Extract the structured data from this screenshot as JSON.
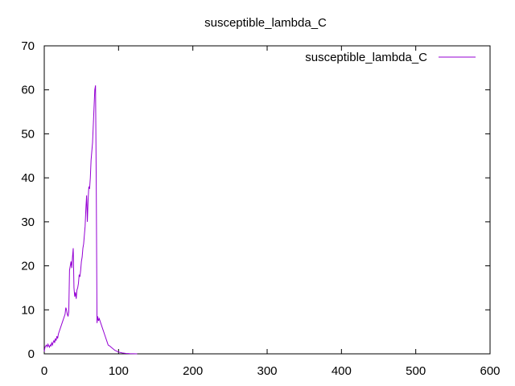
{
  "chart_data": {
    "type": "line",
    "title": "susceptible_lambda_C",
    "xlabel": "",
    "ylabel": "",
    "xlim": [
      0,
      600
    ],
    "ylim": [
      0,
      70
    ],
    "xticks": [
      0,
      100,
      200,
      300,
      400,
      500,
      600
    ],
    "yticks": [
      0,
      10,
      20,
      30,
      40,
      50,
      60,
      70
    ],
    "grid": false,
    "legend_position": "top-right",
    "series": [
      {
        "name": "susceptible_lambda_C",
        "color": "#9400d3",
        "x": [
          0,
          1,
          2,
          3,
          4,
          5,
          6,
          7,
          8,
          9,
          10,
          11,
          12,
          13,
          14,
          15,
          16,
          17,
          18,
          19,
          20,
          21,
          22,
          23,
          24,
          25,
          26,
          27,
          28,
          29,
          30,
          31,
          32,
          33,
          34,
          35,
          36,
          37,
          38,
          39,
          40,
          41,
          42,
          43,
          44,
          45,
          46,
          47,
          48,
          49,
          50,
          51,
          52,
          53,
          54,
          55,
          56,
          57,
          58,
          59,
          60,
          61,
          62,
          63,
          64,
          65,
          66,
          67,
          68,
          69,
          70,
          71,
          72,
          73,
          74,
          75,
          76,
          77,
          78,
          79,
          80,
          82,
          84,
          86,
          88,
          90,
          95,
          100,
          105,
          110,
          115,
          120,
          125
        ],
        "y": [
          0.5,
          1.5,
          1.8,
          2.0,
          1.6,
          2.2,
          1.8,
          1.5,
          2.0,
          1.8,
          2.5,
          2.0,
          2.6,
          3.0,
          2.5,
          3.5,
          3.0,
          4.0,
          3.5,
          4.5,
          5.0,
          5.5,
          6.0,
          6.5,
          7.0,
          7.5,
          8.0,
          8.5,
          9.0,
          10.5,
          10.0,
          9.0,
          8.5,
          9.5,
          19.0,
          20.0,
          21.0,
          19.5,
          22.0,
          24.0,
          15.0,
          13.0,
          14.0,
          12.5,
          14.5,
          15.0,
          16.0,
          18.0,
          17.5,
          19.0,
          21.0,
          22.0,
          24.0,
          25.0,
          27.0,
          29.0,
          33.0,
          36.0,
          30.0,
          35.0,
          38.0,
          37.5,
          40.0,
          44.0,
          46.0,
          48.0,
          52.0,
          56.0,
          60.0,
          61.0,
          38.0,
          7.0,
          8.5,
          7.5,
          8.0,
          7.5,
          7.0,
          6.5,
          6.0,
          5.5,
          5.0,
          4.0,
          3.0,
          2.0,
          1.8,
          1.5,
          0.8,
          0.4,
          0.2,
          0.1,
          0.05,
          0.02,
          0.0
        ]
      }
    ]
  }
}
